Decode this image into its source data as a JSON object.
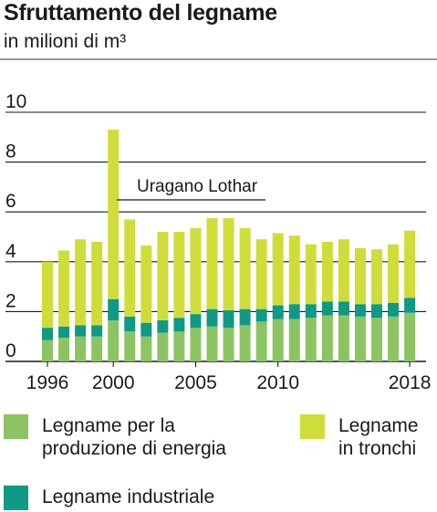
{
  "title": "Sfruttamento del legname",
  "subtitle": "in milioni di m³",
  "colors": {
    "energia": "#8cc463",
    "industriale": "#0e9a84",
    "tronchi": "#cfdd3a",
    "grid": "#1a1a1a",
    "topRule": "#9a9a9a"
  },
  "chart_data": {
    "type": "bar",
    "stacked": true,
    "categories": [
      "1996",
      "1997",
      "1998",
      "1999",
      "2000",
      "2001",
      "2002",
      "2003",
      "2004",
      "2005",
      "2006",
      "2007",
      "2008",
      "2009",
      "2010",
      "2011",
      "2012",
      "2013",
      "2014",
      "2015",
      "2016",
      "2017",
      "2018"
    ],
    "series": [
      {
        "name": "Legname per la\nproduzione di energia",
        "values": [
          0.85,
          0.95,
          1.0,
          1.0,
          1.65,
          1.2,
          1.0,
          1.15,
          1.2,
          1.35,
          1.4,
          1.35,
          1.45,
          1.6,
          1.7,
          1.7,
          1.75,
          1.85,
          1.85,
          1.8,
          1.75,
          1.8,
          1.95
        ]
      },
      {
        "name": "Legname industriale",
        "values": [
          0.5,
          0.45,
          0.45,
          0.45,
          0.85,
          0.6,
          0.55,
          0.5,
          0.55,
          0.55,
          0.7,
          0.7,
          0.65,
          0.5,
          0.55,
          0.6,
          0.55,
          0.55,
          0.55,
          0.5,
          0.55,
          0.55,
          0.6
        ]
      },
      {
        "name": "Legname\nin tronchi",
        "values": [
          2.65,
          3.05,
          3.45,
          3.35,
          6.8,
          3.9,
          3.1,
          3.55,
          3.45,
          3.45,
          3.65,
          3.7,
          3.25,
          2.8,
          2.9,
          2.75,
          2.4,
          2.4,
          2.5,
          2.25,
          2.2,
          2.35,
          2.7
        ]
      }
    ],
    "yticks": [
      0,
      2,
      4,
      6,
      8,
      10
    ],
    "ylim": [
      0,
      10
    ],
    "xtick_labels": [
      "1996",
      "2000",
      "2005",
      "2010",
      "2018"
    ],
    "annotation": "Uragano Lothar",
    "grid": true,
    "legend": "bottom"
  }
}
